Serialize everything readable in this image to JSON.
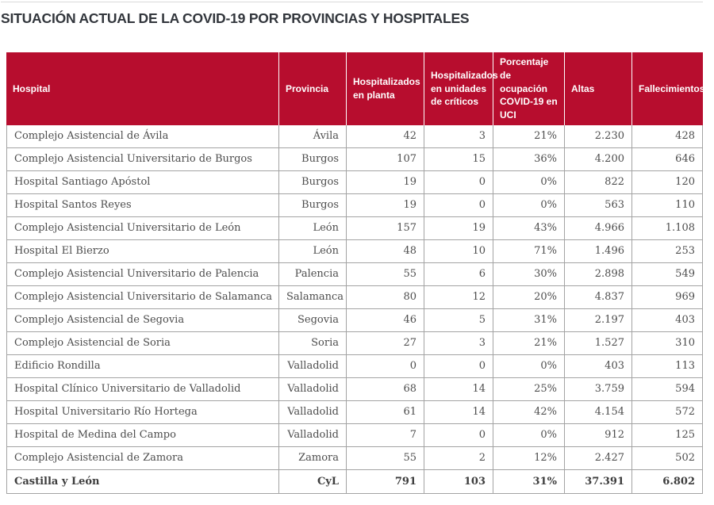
{
  "page": {
    "title": "SITUACIÓN ACTUAL DE LA COVID-19 POR PROVINCIAS Y HOSPITALES"
  },
  "colors": {
    "header_bg": "#b70d2e",
    "header_text": "#ffffff",
    "grid": "#a3a3a3",
    "body_text": "#4d4d4d",
    "total_text": "#3d3d3d",
    "title_text": "#32363c",
    "rule": "#d9d9d9"
  },
  "table": {
    "columns": [
      {
        "key": "hospital",
        "label": "Hospital"
      },
      {
        "key": "provincia",
        "label": "Provincia"
      },
      {
        "key": "planta",
        "label": "Hospitalizados en planta"
      },
      {
        "key": "criticos",
        "label": "Hospitalizados en unidades de críticos"
      },
      {
        "key": "uci",
        "label": "Porcentaje de ocupación COVID-19 en UCI"
      },
      {
        "key": "altas",
        "label": "Altas"
      },
      {
        "key": "fallecimientos",
        "label": "Fallecimientos"
      }
    ],
    "rows": [
      {
        "hospital": "Complejo Asistencial de Ávila",
        "provincia": "Ávila",
        "planta": "42",
        "criticos": "3",
        "uci": "21%",
        "altas": "2.230",
        "fallecimientos": "428"
      },
      {
        "hospital": "Complejo Asistencial Universitario de Burgos",
        "provincia": "Burgos",
        "planta": "107",
        "criticos": "15",
        "uci": "36%",
        "altas": "4.200",
        "fallecimientos": "646"
      },
      {
        "hospital": "Hospital Santiago Apóstol",
        "provincia": "Burgos",
        "planta": "19",
        "criticos": "0",
        "uci": "0%",
        "altas": "822",
        "fallecimientos": "120"
      },
      {
        "hospital": "Hospital Santos Reyes",
        "provincia": "Burgos",
        "planta": "19",
        "criticos": "0",
        "uci": "0%",
        "altas": "563",
        "fallecimientos": "110"
      },
      {
        "hospital": "Complejo Asistencial Universitario de León",
        "provincia": "León",
        "planta": "157",
        "criticos": "19",
        "uci": "43%",
        "altas": "4.966",
        "fallecimientos": "1.108"
      },
      {
        "hospital": "Hospital El Bierzo",
        "provincia": "León",
        "planta": "48",
        "criticos": "10",
        "uci": "71%",
        "altas": "1.496",
        "fallecimientos": "253"
      },
      {
        "hospital": "Complejo Asistencial Universitario de Palencia",
        "provincia": "Palencia",
        "planta": "55",
        "criticos": "6",
        "uci": "30%",
        "altas": "2.898",
        "fallecimientos": "549"
      },
      {
        "hospital": "Complejo Asistencial Universitario de Salamanca",
        "provincia": "Salamanca",
        "planta": "80",
        "criticos": "12",
        "uci": "20%",
        "altas": "4.837",
        "fallecimientos": "969"
      },
      {
        "hospital": "Complejo Asistencial de Segovia",
        "provincia": "Segovia",
        "planta": "46",
        "criticos": "5",
        "uci": "31%",
        "altas": "2.197",
        "fallecimientos": "403"
      },
      {
        "hospital": "Complejo Asistencial de Soria",
        "provincia": "Soria",
        "planta": "27",
        "criticos": "3",
        "uci": "21%",
        "altas": "1.527",
        "fallecimientos": "310"
      },
      {
        "hospital": "Edificio Rondilla",
        "provincia": "Valladolid",
        "planta": "0",
        "criticos": "0",
        "uci": "0%",
        "altas": "403",
        "fallecimientos": "113"
      },
      {
        "hospital": "Hospital Clínico Universitario de Valladolid",
        "provincia": "Valladolid",
        "planta": "68",
        "criticos": "14",
        "uci": "25%",
        "altas": "3.759",
        "fallecimientos": "594"
      },
      {
        "hospital": "Hospital Universitario Río Hortega",
        "provincia": "Valladolid",
        "planta": "61",
        "criticos": "14",
        "uci": "42%",
        "altas": "4.154",
        "fallecimientos": "572"
      },
      {
        "hospital": "Hospital de Medina del Campo",
        "provincia": "Valladolid",
        "planta": "7",
        "criticos": "0",
        "uci": "0%",
        "altas": "912",
        "fallecimientos": "125"
      },
      {
        "hospital": "Complejo Asistencial de Zamora",
        "provincia": "Zamora",
        "planta": "55",
        "criticos": "2",
        "uci": "12%",
        "altas": "2.427",
        "fallecimientos": "502"
      }
    ],
    "total_row": {
      "hospital": "Castilla y León",
      "provincia": "CyL",
      "planta": "791",
      "criticos": "103",
      "uci": "31%",
      "altas": "37.391",
      "fallecimientos": "6.802"
    }
  }
}
